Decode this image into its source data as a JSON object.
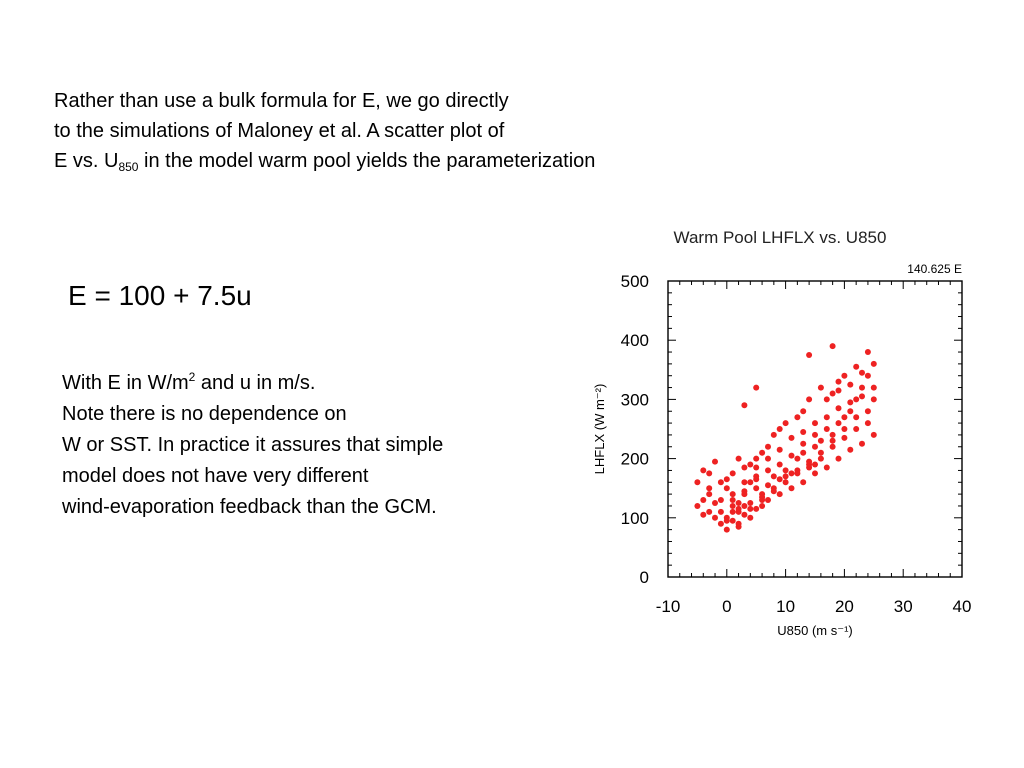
{
  "intro": {
    "line1": "Rather than use a bulk formula for E, we go directly",
    "line2": "to the simulations of Maloney et al.  A scatter plot of",
    "line3_before": "E vs. U",
    "line3_sub": "850",
    "line3_after": " in the model warm pool yields the parameterization"
  },
  "equation": "E = 100 + 7.5u",
  "notes": {
    "line1_before": "With E in W/m",
    "line1_sup": "2",
    "line1_after": " and u in m/s.",
    "line2": "Note there is no dependence on",
    "line3": "W or SST.  In practice it assures that simple",
    "line4": "model does not have very different",
    "line5": "wind-evaporation feedback than the GCM."
  },
  "chart_data": {
    "type": "scatter",
    "title": "Warm Pool LHFLX vs. U850",
    "subtitle": "140.625 E",
    "xlabel": "U850 (m s⁻¹)",
    "ylabel": "LHFLX (W m⁻²)",
    "xlim": [
      -10,
      40
    ],
    "ylim": [
      0,
      500
    ],
    "xticks": [
      -10,
      0,
      10,
      20,
      30,
      40
    ],
    "yticks": [
      0,
      100,
      200,
      300,
      400,
      500
    ],
    "color": "#ee2222",
    "points": [
      [
        -5,
        160
      ],
      [
        -4,
        180
      ],
      [
        -3,
        175
      ],
      [
        -2,
        195
      ],
      [
        -1,
        160
      ],
      [
        0,
        150
      ],
      [
        1,
        120
      ],
      [
        2,
        110
      ],
      [
        -3,
        110
      ],
      [
        -4,
        130
      ],
      [
        0,
        100
      ],
      [
        1,
        95
      ],
      [
        2,
        90
      ],
      [
        3,
        105
      ],
      [
        4,
        115
      ],
      [
        0,
        80
      ],
      [
        -1,
        90
      ],
      [
        2,
        125
      ],
      [
        1,
        140
      ],
      [
        3,
        145
      ],
      [
        4,
        160
      ],
      [
        5,
        150
      ],
      [
        6,
        140
      ],
      [
        5,
        170
      ],
      [
        6,
        130
      ],
      [
        7,
        155
      ],
      [
        8,
        170
      ],
      [
        9,
        165
      ],
      [
        10,
        180
      ],
      [
        11,
        175
      ],
      [
        12,
        200
      ],
      [
        13,
        210
      ],
      [
        14,
        195
      ],
      [
        15,
        220
      ],
      [
        16,
        230
      ],
      [
        17,
        250
      ],
      [
        18,
        240
      ],
      [
        19,
        260
      ],
      [
        20,
        270
      ],
      [
        21,
        280
      ],
      [
        22,
        300
      ],
      [
        23,
        320
      ],
      [
        24,
        340
      ],
      [
        25,
        360
      ],
      [
        24,
        380
      ],
      [
        22,
        355
      ],
      [
        20,
        340
      ],
      [
        19,
        330
      ],
      [
        18,
        310
      ],
      [
        16,
        320
      ],
      [
        14,
        300
      ],
      [
        13,
        280
      ],
      [
        12,
        270
      ],
      [
        10,
        260
      ],
      [
        9,
        250
      ],
      [
        8,
        240
      ],
      [
        7,
        220
      ],
      [
        6,
        210
      ],
      [
        5,
        200
      ],
      [
        4,
        190
      ],
      [
        3,
        185
      ],
      [
        2,
        200
      ],
      [
        1,
        175
      ],
      [
        0,
        165
      ],
      [
        3,
        120
      ],
      [
        5,
        115
      ],
      [
        7,
        130
      ],
      [
        9,
        140
      ],
      [
        11,
        150
      ],
      [
        13,
        160
      ],
      [
        15,
        175
      ],
      [
        17,
        185
      ],
      [
        19,
        200
      ],
      [
        21,
        215
      ],
      [
        23,
        225
      ],
      [
        25,
        240
      ],
      [
        24,
        260
      ],
      [
        22,
        270
      ],
      [
        20,
        250
      ],
      [
        18,
        230
      ],
      [
        16,
        210
      ],
      [
        14,
        190
      ],
      [
        12,
        180
      ],
      [
        10,
        170
      ],
      [
        8,
        150
      ],
      [
        6,
        120
      ],
      [
        4,
        100
      ],
      [
        2,
        85
      ],
      [
        0,
        95
      ],
      [
        -1,
        110
      ],
      [
        -2,
        125
      ],
      [
        -3,
        140
      ],
      [
        -5,
        120
      ],
      [
        -4,
        105
      ],
      [
        -2,
        100
      ],
      [
        1,
        130
      ],
      [
        3,
        160
      ],
      [
        5,
        185
      ],
      [
        7,
        200
      ],
      [
        9,
        215
      ],
      [
        11,
        235
      ],
      [
        13,
        245
      ],
      [
        15,
        260
      ],
      [
        17,
        270
      ],
      [
        19,
        285
      ],
      [
        21,
        295
      ],
      [
        23,
        305
      ],
      [
        25,
        300
      ],
      [
        24,
        280
      ],
      [
        22,
        250
      ],
      [
        20,
        235
      ],
      [
        18,
        220
      ],
      [
        16,
        200
      ],
      [
        14,
        185
      ],
      [
        12,
        175
      ],
      [
        10,
        160
      ],
      [
        8,
        145
      ],
      [
        6,
        135
      ],
      [
        4,
        125
      ],
      [
        2,
        115
      ],
      [
        14,
        375
      ],
      [
        18,
        390
      ],
      [
        5,
        320
      ],
      [
        3,
        290
      ],
      [
        15,
        190
      ],
      [
        17,
        300
      ],
      [
        19,
        315
      ],
      [
        21,
        325
      ],
      [
        23,
        345
      ],
      [
        25,
        320
      ],
      [
        11,
        205
      ],
      [
        13,
        225
      ],
      [
        15,
        240
      ],
      [
        9,
        190
      ],
      [
        7,
        180
      ],
      [
        5,
        165
      ],
      [
        3,
        140
      ],
      [
        1,
        110
      ],
      [
        -1,
        130
      ],
      [
        -3,
        150
      ]
    ]
  }
}
